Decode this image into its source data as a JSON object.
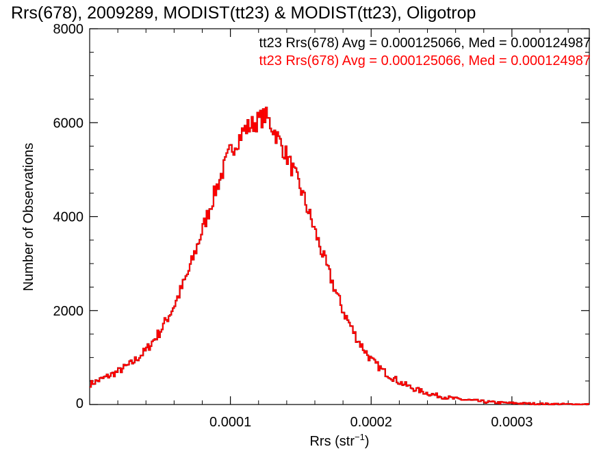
{
  "chart_data": {
    "type": "histogram",
    "title": "Rrs(678), 2009289, MODIST(tt23) & MODIST(tt23), Oligotrop",
    "xlabel": "Rrs (str",
    "xlabel_sup": "−1",
    "xlabel_close": ")",
    "ylabel": "Number of Observations",
    "xlim": [
      0.0,
      0.000355
    ],
    "ylim": [
      0,
      8000
    ],
    "x_ticks": [
      0.0001,
      0.0002,
      0.0003
    ],
    "x_tick_labels": [
      "0.0001",
      "0.0002",
      "0.0003"
    ],
    "y_ticks": [
      0,
      2000,
      4000,
      6000,
      8000
    ],
    "y_tick_labels": [
      "0",
      "2000",
      "4000",
      "6000",
      "8000"
    ],
    "bin_width": 1e-06,
    "annotations": [
      {
        "text": "tt23 Rrs(678) Avg = 0.000125066, Med = 0.000124987",
        "color": "#000000"
      },
      {
        "text": "tt23 Rrs(678) Avg = 0.000125066, Med = 0.000124987",
        "color": "#ff0000"
      }
    ],
    "series": [
      {
        "line_color": "#000000"
      },
      {
        "line_color": "#ff0000"
      }
    ],
    "profile": {
      "x": [
        0,
        1e-05,
        2e-05,
        3e-05,
        4e-05,
        5e-05,
        6e-05,
        7e-05,
        8e-05,
        9e-05,
        0.0001,
        0.00011,
        0.00012,
        0.000125,
        0.00013,
        0.00014,
        0.00015,
        0.00016,
        0.00017,
        0.00018,
        0.00019,
        0.0002,
        0.00021,
        0.00022,
        0.00023,
        0.00024,
        0.00025,
        0.00026,
        0.00027,
        0.00028,
        0.00029,
        0.0003,
        0.00031,
        0.00032,
        0.00033,
        0.00034,
        0.000355
      ],
      "y": [
        430,
        560,
        700,
        880,
        1150,
        1550,
        2100,
        2800,
        3700,
        4600,
        5400,
        5850,
        6050,
        6150,
        5900,
        5300,
        4600,
        3700,
        2800,
        2000,
        1400,
        950,
        680,
        480,
        340,
        240,
        170,
        120,
        90,
        60,
        40,
        30,
        20,
        15,
        10,
        6,
        3
      ]
    }
  }
}
